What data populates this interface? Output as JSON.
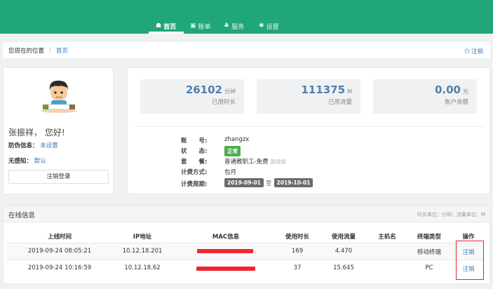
{
  "nav": {
    "items": [
      {
        "label": "首页",
        "icon": "home-icon"
      },
      {
        "label": "账单",
        "icon": "bill-icon"
      },
      {
        "label": "服务",
        "icon": "service-icon"
      },
      {
        "label": "设置",
        "icon": "gear-icon"
      }
    ],
    "active": "首页"
  },
  "breadcrumb": {
    "prefix": "您现在的位置",
    "separator": "/",
    "current": "首页",
    "logout": "注销"
  },
  "profile": {
    "greeting": "张振祥， 您好!",
    "anti_fake_label": "防伪信息：",
    "anti_fake_value": "未设置",
    "senseless_label": "无感知：",
    "senseless_value": "默认",
    "logout_button": "注销登录"
  },
  "stats": [
    {
      "value": "26102",
      "unit": "分钟",
      "label": "已用时长"
    },
    {
      "value": "111375",
      "unit": "M",
      "label": "已用流量"
    },
    {
      "value": "0.00",
      "unit": "元",
      "label": "账户余额"
    }
  ],
  "account": {
    "account_label": "账　　号:",
    "account": "zhangzx",
    "status_label": "状　　态:",
    "status": "正常",
    "plan_label": "套　　餐:",
    "plan": "普通教职工-免费",
    "plan_group": "测试组",
    "billing_label": "计费方式:",
    "billing": "包月",
    "period_label": "计费周期:",
    "period_start": "2019-09-01",
    "period_to": "至",
    "period_end": "2019-10-01"
  },
  "online": {
    "title": "在线信息",
    "units": "时长单位：分钟；流量单位：M",
    "columns": [
      "上线时间",
      "IP地址",
      "MAC信息",
      "使用时长",
      "使用流量",
      "主机名",
      "终端类型",
      "操作"
    ],
    "rows": [
      {
        "time": "2019-09-24 08:05:21",
        "ip": "10.12.18.201",
        "duration": "169",
        "traffic": "4.470",
        "host": "",
        "type": "移动终端",
        "action": "注销"
      },
      {
        "time": "2019-09-24 10:16:59",
        "ip": "10.12.18.62",
        "duration": "37",
        "traffic": "15.645",
        "host": "",
        "type": "PC",
        "action": "注销"
      }
    ]
  },
  "colors": {
    "header": "#21a67a",
    "link": "#3a7bc0",
    "status_badge": "#4cae4c",
    "period_badge": "#6b6b6b",
    "highlight": "#e0242a",
    "redaction": "#f2262e"
  }
}
